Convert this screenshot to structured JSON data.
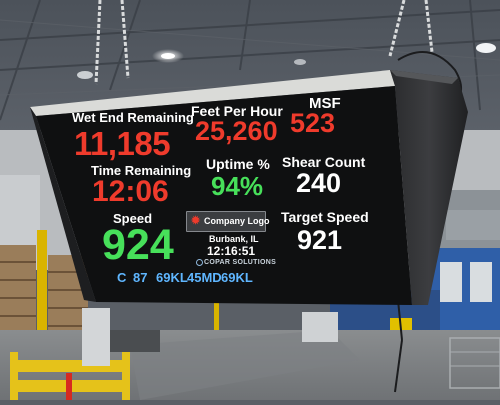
{
  "display": {
    "wet_end_remaining": {
      "label": "Wet End Remaining",
      "value": "11,185"
    },
    "feet_per_hour": {
      "label": "Feet Per Hour",
      "value": "25,260"
    },
    "msf": {
      "label": "MSF",
      "value": "523"
    },
    "time_remaining": {
      "label": "Time Remaining",
      "value": "12:06"
    },
    "uptime": {
      "label": "Uptime %",
      "value": "94%"
    },
    "shear_count": {
      "label": "Shear Count",
      "value": "240"
    },
    "speed": {
      "label": "Speed",
      "value": "924"
    },
    "target_speed": {
      "label": "Target Speed",
      "value": "921"
    },
    "logo": {
      "text": "Company Logo"
    },
    "location": "Burbank, IL",
    "clock": "12:16:51",
    "vendor": "COPAR SOLUTIONS",
    "status_line": [
      "C",
      "87",
      "69KL",
      "45MD",
      "69KL"
    ]
  },
  "colors": {
    "red_value": "#ef3b2c",
    "green_value": "#47e05a",
    "white_value": "#ffffff",
    "blue_status": "#5fb6ff",
    "panel": "#0f1011"
  }
}
